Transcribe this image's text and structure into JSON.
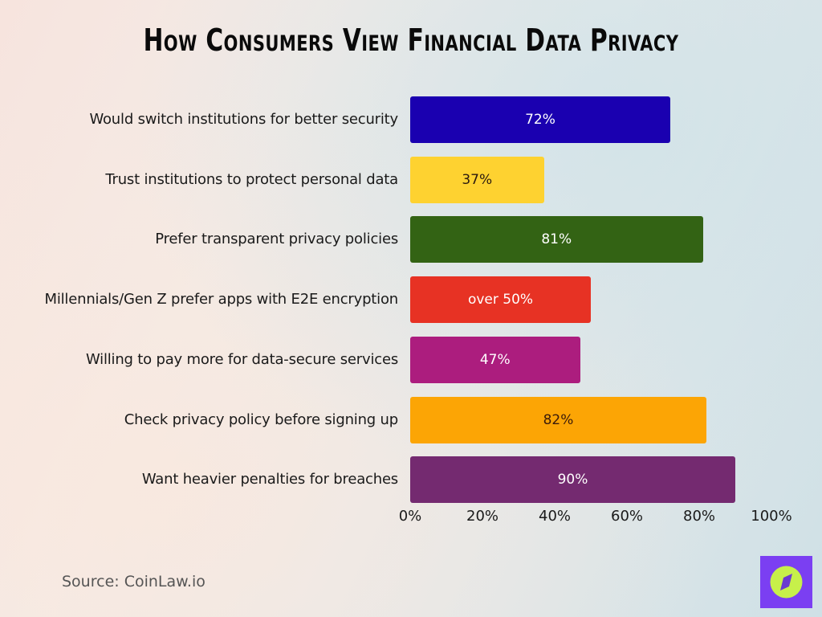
{
  "title": "How Consumers View Financial Data Privacy",
  "source": "Source: CoinLaw.io",
  "axis": {
    "ticks": [
      "0%",
      "20%",
      "40%",
      "60%",
      "80%",
      "100%"
    ]
  },
  "bars": [
    {
      "label": "Would switch institutions for better security",
      "value": 72,
      "display": "72%",
      "color": "#1a00b0",
      "text_color": "#ffffff"
    },
    {
      "label": "Trust institutions to protect personal data",
      "value": 37,
      "display": "37%",
      "color": "#fed230",
      "text_color": "#2a1a10"
    },
    {
      "label": "Prefer transparent privacy policies",
      "value": 81,
      "display": "81%",
      "color": "#336314",
      "text_color": "#ffffff"
    },
    {
      "label": "Millennials/Gen Z prefer apps with E2E encryption",
      "value": 50,
      "display": "over 50%",
      "color": "#e73224",
      "text_color": "#ffffff"
    },
    {
      "label": "Willing to pay more for data-secure services",
      "value": 47,
      "display": "47%",
      "color": "#ac1d7e",
      "text_color": "#ffffff"
    },
    {
      "label": "Check privacy policy before signing up",
      "value": 82,
      "display": "82%",
      "color": "#fca505",
      "text_color": "#3a1a0a"
    },
    {
      "label": "Want heavier penalties for breaches",
      "value": 90,
      "display": "90%",
      "color": "#742a70",
      "text_color": "#ffffff"
    }
  ],
  "logo": {
    "icon": "compass-icon",
    "bg_color": "#7b3ff2",
    "circle_color": "#c7f04a"
  },
  "chart_data": {
    "type": "bar",
    "orientation": "horizontal",
    "title": "How Consumers View Financial Data Privacy",
    "categories": [
      "Would switch institutions for better security",
      "Trust institutions to protect personal data",
      "Prefer transparent privacy policies",
      "Millennials/Gen Z prefer apps with E2E encryption",
      "Willing to pay more for data-secure services",
      "Check privacy policy before signing up",
      "Want heavier penalties for breaches"
    ],
    "values": [
      72,
      37,
      81,
      50,
      47,
      82,
      90
    ],
    "data_labels": [
      "72%",
      "37%",
      "81%",
      "over 50%",
      "47%",
      "82%",
      "90%"
    ],
    "colors": [
      "#1a00b0",
      "#fed230",
      "#336314",
      "#e73224",
      "#ac1d7e",
      "#fca505",
      "#742a70"
    ],
    "xlabel": "",
    "ylabel": "",
    "xlim": [
      0,
      100
    ],
    "x_ticks": [
      "0%",
      "20%",
      "40%",
      "60%",
      "80%",
      "100%"
    ],
    "grid": false,
    "legend": "none",
    "annotations": [
      "Source: CoinLaw.io"
    ]
  }
}
